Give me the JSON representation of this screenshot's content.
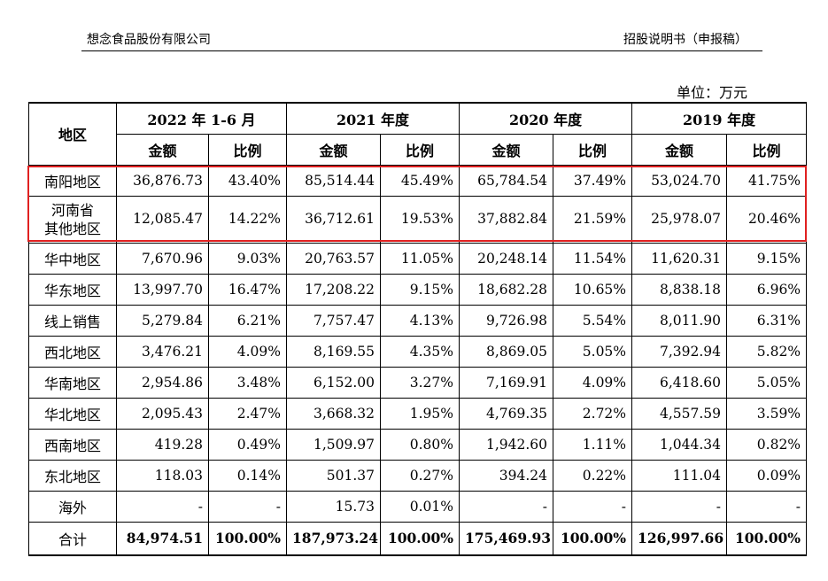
{
  "header": {
    "company": "想念食品股份有限公司",
    "doc_type": "招股说明书（申报稿）"
  },
  "unit": "单位：万元",
  "table": {
    "region_header": "地区",
    "periods": [
      "2022 年 1-6 月",
      "2021 年度",
      "2020 年度",
      "2019 年度"
    ],
    "amount_header": "金额",
    "ratio_header": "比例",
    "rows": [
      {
        "region": "南阳地区",
        "values": [
          "36,876.73",
          "43.40%",
          "85,514.44",
          "45.49%",
          "65,784.54",
          "37.49%",
          "53,024.70",
          "41.75%"
        ]
      },
      {
        "region": "河南省其他地区",
        "region_lines": [
          "河南省",
          "其他地区"
        ],
        "values": [
          "12,085.47",
          "14.22%",
          "36,712.61",
          "19.53%",
          "37,882.84",
          "21.59%",
          "25,978.07",
          "20.46%"
        ]
      },
      {
        "region": "华中地区",
        "values": [
          "7,670.96",
          "9.03%",
          "20,763.57",
          "11.05%",
          "20,248.14",
          "11.54%",
          "11,620.31",
          "9.15%"
        ]
      },
      {
        "region": "华东地区",
        "values": [
          "13,997.70",
          "16.47%",
          "17,208.22",
          "9.15%",
          "18,682.28",
          "10.65%",
          "8,838.18",
          "6.96%"
        ]
      },
      {
        "region": "线上销售",
        "values": [
          "5,279.84",
          "6.21%",
          "7,757.47",
          "4.13%",
          "9,726.98",
          "5.54%",
          "8,011.90",
          "6.31%"
        ]
      },
      {
        "region": "西北地区",
        "values": [
          "3,476.21",
          "4.09%",
          "8,169.55",
          "4.35%",
          "8,869.05",
          "5.05%",
          "7,392.94",
          "5.82%"
        ]
      },
      {
        "region": "华南地区",
        "values": [
          "2,954.86",
          "3.48%",
          "6,152.00",
          "3.27%",
          "7,169.91",
          "4.09%",
          "6,418.60",
          "5.05%"
        ]
      },
      {
        "region": "华北地区",
        "values": [
          "2,095.43",
          "2.47%",
          "3,668.32",
          "1.95%",
          "4,769.35",
          "2.72%",
          "4,557.59",
          "3.59%"
        ]
      },
      {
        "region": "西南地区",
        "values": [
          "419.28",
          "0.49%",
          "1,509.97",
          "0.80%",
          "1,942.60",
          "1.11%",
          "1,044.34",
          "0.82%"
        ]
      },
      {
        "region": "东北地区",
        "values": [
          "118.03",
          "0.14%",
          "501.37",
          "0.27%",
          "394.24",
          "0.22%",
          "111.04",
          "0.09%"
        ]
      },
      {
        "region": "海外",
        "values": [
          "-",
          "-",
          "15.73",
          "0.01%",
          "-",
          "-",
          "-",
          "-"
        ]
      }
    ],
    "total": {
      "region": "合计",
      "values": [
        "84,974.51",
        "100.00%",
        "187,973.24",
        "100.00%",
        "175,469.93",
        "100.00%",
        "126,997.66",
        "100.00%"
      ]
    }
  },
  "highlight_color": "#e02020"
}
